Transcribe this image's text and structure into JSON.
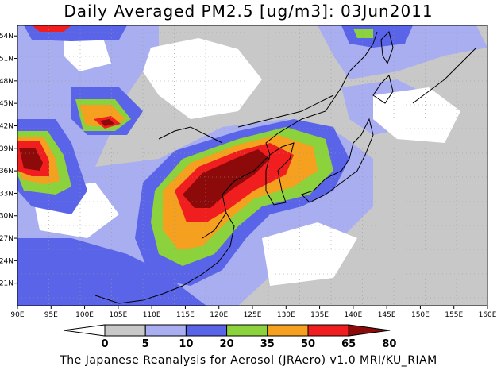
{
  "title": "Daily Averaged PM2.5 [ug/m3]: 03Jun2011",
  "credit": "The Japanese Reanalysis for Aerosol (JRAero) v1.0 MRI/KU_RIAM",
  "lon_labels": [
    "90E",
    "95E",
    "100E",
    "105E",
    "110E",
    "115E",
    "120E",
    "125E",
    "130E",
    "135E",
    "140E",
    "145E",
    "150E",
    "155E",
    "160E"
  ],
  "lat_labels": [
    "21N",
    "24N",
    "27N",
    "30N",
    "33N",
    "36N",
    "39N",
    "42N",
    "45N",
    "48N",
    "51N",
    "54N"
  ],
  "colorbar": {
    "labels": [
      "0",
      "5",
      "10",
      "20",
      "35",
      "50",
      "65",
      "80"
    ],
    "colors": [
      "#ffffff",
      "#c8c8c8",
      "#a8aef0",
      "#5a64e8",
      "#8cd23c",
      "#f5a01e",
      "#f01e1e",
      "#8c0a0a"
    ]
  },
  "map_colors": {
    "white": "#ffffff",
    "gray": "#c8c8c8",
    "light_blue": "#a8aef0",
    "blue": "#5a64e8",
    "green": "#8cd23c",
    "orange": "#f5a01e",
    "red": "#f01e1e",
    "darkred": "#8c0a0a"
  }
}
